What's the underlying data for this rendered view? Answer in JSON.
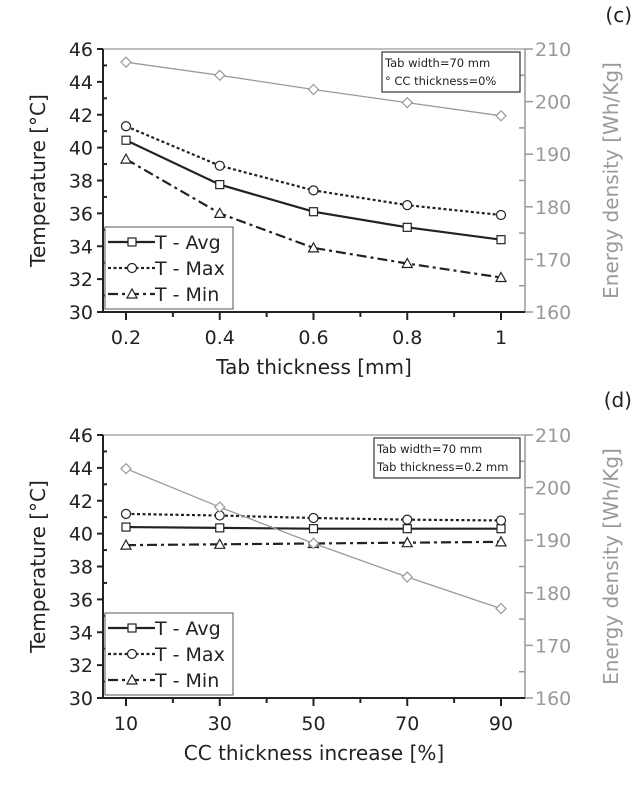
{
  "chart_data": [
    {
      "type": "line",
      "panel_label": "(c)",
      "xlabel": "Tab thickness [mm]",
      "ylabel": "Temperature [°C]",
      "y2label": "Energy density [Wh/Kg]",
      "x": [
        0.2,
        0.4,
        0.6,
        0.8,
        1
      ],
      "x_tick_labels": [
        "0.2",
        "0.4",
        "0.6",
        "0.8",
        "1"
      ],
      "xlim": [
        0.2,
        1
      ],
      "ylim": [
        30,
        46
      ],
      "y_ticks": [
        30,
        32,
        34,
        36,
        38,
        40,
        42,
        44,
        46
      ],
      "y2lim": [
        160,
        210
      ],
      "y2_ticks": [
        160,
        170,
        180,
        190,
        200,
        210
      ],
      "annotation": [
        "Tab width=70 mm",
        "° CC thickness=0%"
      ],
      "legend_position": "bottom-left",
      "series": [
        {
          "name": "T - Avg",
          "axis": "left",
          "values": [
            40.45,
            37.75,
            36.1,
            35.15,
            34.4
          ],
          "marker": "square",
          "dash": "solid"
        },
        {
          "name": "T - Max",
          "axis": "left",
          "values": [
            41.3,
            38.9,
            37.4,
            36.5,
            35.9
          ],
          "marker": "circle",
          "dash": "dot"
        },
        {
          "name": "T - Min",
          "axis": "left",
          "values": [
            39.3,
            36.0,
            33.9,
            32.95,
            32.1
          ],
          "marker": "triangle",
          "dash": "dashdot"
        },
        {
          "name": "Energy density",
          "axis": "right",
          "values": [
            207.5,
            205.0,
            202.3,
            199.8,
            197.3
          ],
          "marker": "diamond",
          "dash": "solid",
          "color": "#9a9a9a"
        }
      ]
    },
    {
      "type": "line",
      "panel_label": "(d)",
      "xlabel": "CC thickness increase [%]",
      "ylabel": "Temperature [°C]",
      "y2label": "Energy density [Wh/Kg]",
      "x": [
        10,
        30,
        50,
        70,
        90
      ],
      "x_tick_labels": [
        "10",
        "30",
        "50",
        "70",
        "90"
      ],
      "xlim": [
        10,
        90
      ],
      "ylim": [
        30,
        46
      ],
      "y_ticks": [
        30,
        32,
        34,
        36,
        38,
        40,
        42,
        44,
        46
      ],
      "y2lim": [
        160,
        210
      ],
      "y2_ticks": [
        160,
        170,
        180,
        190,
        200,
        210
      ],
      "annotation": [
        "Tab width=70 mm",
        "Tab thickness=0.2 mm"
      ],
      "legend_position": "bottom-left",
      "series": [
        {
          "name": "T - Avg",
          "axis": "left",
          "values": [
            40.4,
            40.35,
            40.3,
            40.3,
            40.3
          ],
          "marker": "square",
          "dash": "solid"
        },
        {
          "name": "T - Max",
          "axis": "left",
          "values": [
            41.2,
            41.1,
            40.95,
            40.85,
            40.8
          ],
          "marker": "circle",
          "dash": "dot"
        },
        {
          "name": "T - Min",
          "axis": "left",
          "values": [
            39.3,
            39.35,
            39.4,
            39.45,
            39.5
          ],
          "marker": "triangle",
          "dash": "dashdot"
        },
        {
          "name": "Energy density",
          "axis": "right",
          "values": [
            203.6,
            196.3,
            189.4,
            183.0,
            177.0
          ],
          "marker": "diamond",
          "dash": "solid",
          "color": "#9a9a9a"
        }
      ]
    }
  ]
}
